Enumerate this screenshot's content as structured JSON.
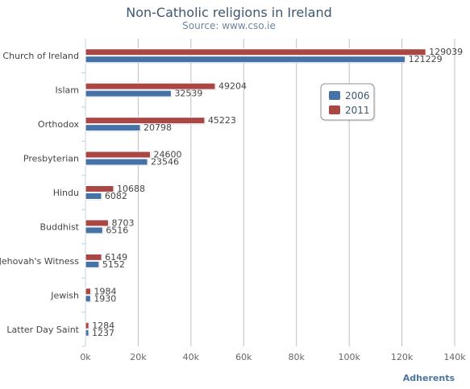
{
  "chart_data": {
    "type": "bar",
    "orientation": "horizontal",
    "title": "Non-Catholic religions in Ireland",
    "subtitle": "Source: www.cso.ie",
    "xlabel": "Adherents",
    "ylabel": "",
    "xlim": [
      0,
      140000
    ],
    "ticks": [
      "0k",
      "20k",
      "40k",
      "60k",
      "80k",
      "100k",
      "120k",
      "140k"
    ],
    "grid": true,
    "legend_position": "top-right",
    "categories": [
      "Church of Ireland",
      "Islam",
      "Orthodox",
      "Presbyterian",
      "Hindu",
      "Buddhist",
      "Jehovah's Witness",
      "Jewish",
      "Latter Day Saint"
    ],
    "series": [
      {
        "name": "2006",
        "color": "#4572a7",
        "values": [
          121229,
          32539,
          20798,
          23546,
          6082,
          6516,
          5152,
          1930,
          1237
        ]
      },
      {
        "name": "2011",
        "color": "#aa4643",
        "values": [
          129039,
          49204,
          45223,
          24600,
          10688,
          8703,
          6149,
          1984,
          1284
        ]
      }
    ]
  }
}
